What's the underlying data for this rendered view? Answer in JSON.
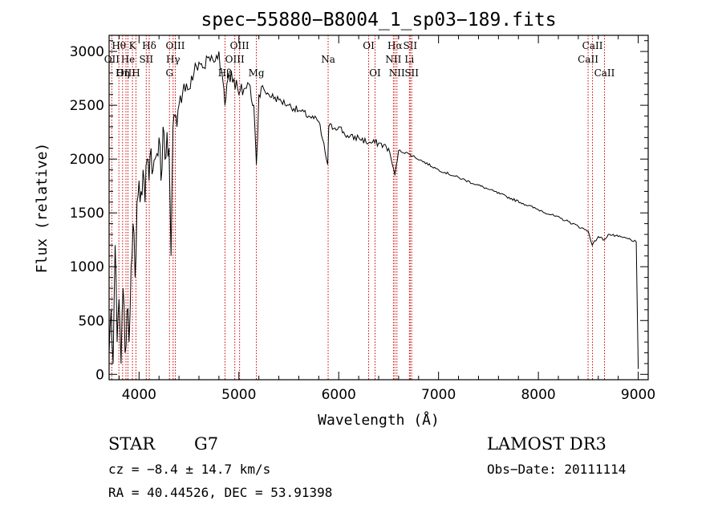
{
  "chart_data": {
    "type": "line",
    "title": "spec−55880−B8004_1_sp03−189.fits",
    "xlabel": "Wavelength (Å)",
    "ylabel": "Flux (relative)",
    "xlim": [
      3700,
      9100
    ],
    "ylim": [
      -50,
      3150
    ],
    "x_ticks": [
      4000,
      5000,
      6000,
      7000,
      8000,
      9000
    ],
    "x_tick_labels": [
      "4000",
      "5000",
      "6000",
      "7000",
      "8000",
      "9000"
    ],
    "y_ticks": [
      0,
      500,
      1000,
      1500,
      2000,
      2500,
      3000
    ],
    "y_tick_labels": [
      "0",
      "500",
      "1000",
      "1500",
      "2000",
      "2500",
      "3000"
    ],
    "series": [
      {
        "name": "spectrum",
        "x": [
          3700,
          3720,
          3740,
          3760,
          3780,
          3800,
          3820,
          3840,
          3860,
          3880,
          3900,
          3920,
          3940,
          3960,
          3980,
          4000,
          4020,
          4040,
          4060,
          4080,
          4100,
          4120,
          4140,
          4160,
          4180,
          4200,
          4220,
          4240,
          4260,
          4280,
          4300,
          4320,
          4340,
          4360,
          4380,
          4400,
          4450,
          4500,
          4550,
          4600,
          4650,
          4700,
          4750,
          4800,
          4850,
          4860,
          4880,
          4900,
          4950,
          5000,
          5050,
          5100,
          5150,
          5175,
          5200,
          5250,
          5300,
          5400,
          5500,
          5600,
          5700,
          5800,
          5890,
          5900,
          6000,
          6100,
          6200,
          6300,
          6400,
          6500,
          6563,
          6600,
          6700,
          7000,
          7500,
          8000,
          8300,
          8500,
          8540,
          8600,
          8660,
          8700,
          8800,
          8900,
          8980,
          9000
        ],
        "values": [
          200,
          600,
          100,
          1200,
          300,
          700,
          100,
          800,
          200,
          600,
          300,
          1000,
          1400,
          900,
          1600,
          1800,
          1700,
          1900,
          1600,
          2000,
          1800,
          2100,
          1900,
          2000,
          2050,
          2200,
          1800,
          2300,
          2000,
          2250,
          2100,
          1100,
          2300,
          2400,
          2300,
          2500,
          2700,
          2650,
          2800,
          2900,
          2850,
          2950,
          2900,
          3000,
          2650,
          2500,
          2700,
          2800,
          2750,
          2600,
          2650,
          2700,
          2500,
          1950,
          2600,
          2650,
          2600,
          2550,
          2500,
          2450,
          2400,
          2350,
          1950,
          2300,
          2300,
          2200,
          2200,
          2150,
          2150,
          2100,
          1850,
          2080,
          2050,
          1900,
          1720,
          1530,
          1420,
          1330,
          1200,
          1280,
          1250,
          1300,
          1280,
          1260,
          1230,
          50
        ]
      }
    ],
    "spectral_lines": [
      {
        "label": "Hθ",
        "wavelength": 3798,
        "row": 1
      },
      {
        "label": "OII",
        "wavelength": 3727,
        "row": 2
      },
      {
        "label": "OIII",
        "wavelength": 3869,
        "row": 3
      },
      {
        "label": "He",
        "wavelength": 3889,
        "row": 2
      },
      {
        "label": "Hη",
        "wavelength": 3835,
        "row": 3
      },
      {
        "label": "K",
        "wavelength": 3934,
        "row": 1
      },
      {
        "label": "H",
        "wavelength": 3969,
        "row": 3
      },
      {
        "label": "SII",
        "wavelength": 4072,
        "row": 2
      },
      {
        "label": "Hδ",
        "wavelength": 4102,
        "row": 1
      },
      {
        "label": "OIII",
        "wavelength": 4363,
        "row": 1
      },
      {
        "label": "Hγ",
        "wavelength": 4341,
        "row": 2
      },
      {
        "label": "G",
        "wavelength": 4305,
        "row": 3
      },
      {
        "label": "OIII",
        "wavelength": 5007,
        "row": 1
      },
      {
        "label": "OIII",
        "wavelength": 4959,
        "row": 2
      },
      {
        "label": "Hβ",
        "wavelength": 4861,
        "row": 3
      },
      {
        "label": "Mg",
        "wavelength": 5175,
        "row": 3
      },
      {
        "label": "Na",
        "wavelength": 5894,
        "row": 2
      },
      {
        "label": "OI",
        "wavelength": 6300,
        "row": 1
      },
      {
        "label": "OI",
        "wavelength": 6364,
        "row": 3
      },
      {
        "label": "Hα",
        "wavelength": 6563,
        "row": 1
      },
      {
        "label": "SII",
        "wavelength": 6716,
        "row": 1
      },
      {
        "label": "NII",
        "wavelength": 6548,
        "row": 2
      },
      {
        "label": "Li",
        "wavelength": 6708,
        "row": 2
      },
      {
        "label": "NII",
        "wavelength": 6583,
        "row": 3
      },
      {
        "label": "SII",
        "wavelength": 6731,
        "row": 3
      },
      {
        "label": "CaII",
        "wavelength": 8542,
        "row": 1
      },
      {
        "label": "CaII",
        "wavelength": 8498,
        "row": 2
      },
      {
        "label": "CaII",
        "wavelength": 8662,
        "row": 3
      }
    ],
    "line_color": "#cc0000"
  },
  "info": {
    "object_class": "STAR",
    "subclass": "G7",
    "survey": "LAMOST DR3",
    "cz": "cz = −8.4 ± 14.7 km/s",
    "obs_date": "Obs−Date: 20111114",
    "coords": "RA =  40.44526, DEC =  53.91398"
  }
}
